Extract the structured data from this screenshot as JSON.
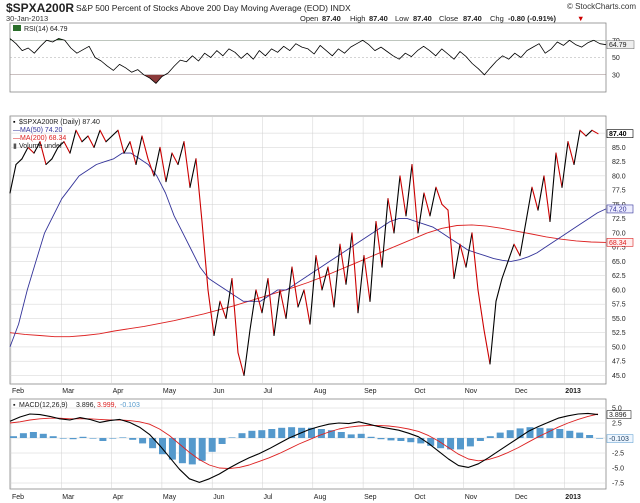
{
  "header": {
    "symbol": "$SPXA200R",
    "description": "S&P 500 Percent of Stocks Above 200 Day Moving Average (EOD) INDX",
    "date": "30-Jan-2013",
    "open_label": "Open",
    "open_value": "87.40",
    "high_label": "High",
    "high_value": "87.40",
    "low_label": "Low",
    "low_value": "87.40",
    "close_label": "Close",
    "close_value": "87.40",
    "chg_label": "Chg",
    "chg_value": "-0.80 (-0.91%)",
    "chg_marker": "▼",
    "brand": "© StockCharts.com"
  },
  "colors": {
    "price_up": "#000000",
    "price_down": "#cc0000",
    "ma50": "#333399",
    "ma200": "#dd2222",
    "macd_line": "#000000",
    "signal_line": "#dd2222",
    "histogram": "#5599cc",
    "rsi_line": "#000000",
    "rsi_overbought": "#2a6e2a",
    "rsi_oversold": "#8a3a3a",
    "grid": "#d0d0d0"
  },
  "chart_data": [
    {
      "type": "line",
      "panel": "rsi",
      "legend": "RSI(14) 64.79",
      "last_value_label": "64.79",
      "y_ticks": [
        "70",
        "50",
        "30"
      ],
      "ylim": [
        10,
        90
      ],
      "overbought": 70,
      "oversold": 30,
      "series": [
        {
          "name": "RSI(14)",
          "values": [
            72,
            66,
            58,
            61,
            55,
            63,
            70,
            68,
            72,
            70,
            61,
            55,
            59,
            63,
            50,
            46,
            40,
            35,
            42,
            38,
            33,
            36,
            30,
            26,
            20,
            28,
            32,
            40,
            47,
            45,
            52,
            46,
            55,
            50,
            58,
            52,
            60,
            56,
            49,
            55,
            48,
            58,
            52,
            60,
            56,
            63,
            58,
            66,
            62,
            60,
            54,
            64,
            58,
            52,
            60,
            55,
            62,
            66,
            70,
            65,
            58,
            62,
            57,
            52,
            48,
            55,
            51,
            58,
            63,
            58,
            52,
            60,
            54,
            48,
            57,
            51,
            43,
            37,
            30,
            38,
            46,
            52,
            48,
            55,
            50,
            58,
            62,
            66,
            55,
            60,
            68,
            64,
            70,
            65,
            62,
            67,
            70,
            66,
            64.79
          ]
        }
      ]
    },
    {
      "type": "line",
      "panel": "price",
      "legend": [
        "$SPXA200R (Daily) 87.40",
        "MA(50) 74.20",
        "MA(200) 68.34",
        "Volume undef"
      ],
      "last_value_labels": {
        "close": "87.40",
        "ma50": "74.20",
        "ma200": "68.34"
      },
      "x_tick_labels": [
        "Feb",
        "Mar",
        "Apr",
        "May",
        "Jun",
        "Jul",
        "Aug",
        "Sep",
        "Oct",
        "Nov",
        "Dec",
        "2013"
      ],
      "y_tick_labels": [
        "45.0",
        "47.5",
        "50.0",
        "52.5",
        "55.0",
        "57.5",
        "60.0",
        "62.5",
        "65.0",
        "67.5",
        "70.0",
        "72.5",
        "75.0",
        "77.5",
        "80.0",
        "82.5",
        "85.0",
        "87.5"
      ],
      "ylim": [
        43.5,
        90.5
      ],
      "series": [
        {
          "name": "$SPXA200R (Daily)",
          "values": [
            77,
            82,
            83,
            85,
            84,
            86,
            82,
            83,
            85,
            86,
            84,
            88,
            86,
            87,
            85,
            88,
            86,
            87,
            88,
            84,
            86,
            82,
            87,
            83,
            80,
            85,
            79,
            84,
            82,
            86,
            78,
            83,
            72,
            60,
            52,
            58,
            55,
            62,
            49,
            45,
            53,
            60,
            56,
            62,
            52,
            60,
            55,
            64,
            57,
            60,
            54,
            66,
            60,
            64,
            57,
            68,
            61,
            70,
            56,
            66,
            58,
            72,
            64,
            76,
            70,
            80,
            73,
            82,
            70,
            77,
            73,
            78,
            75,
            74,
            62,
            68,
            64,
            70,
            60,
            53,
            47,
            58,
            62,
            65,
            68,
            66,
            72,
            78,
            74,
            80,
            72,
            84,
            78,
            86,
            82,
            88,
            87,
            88,
            87.4
          ]
        },
        {
          "name": "MA(50)",
          "values": [
            50,
            54,
            60,
            65,
            70,
            73,
            76,
            78,
            80,
            81,
            82,
            82.5,
            83,
            84,
            84,
            83,
            82,
            80,
            77,
            73,
            70,
            67,
            64,
            62,
            61,
            60,
            59,
            58,
            58,
            58,
            59,
            60,
            60,
            61,
            62,
            63,
            64,
            65,
            66,
            67,
            68,
            69,
            70,
            71,
            72,
            72.5,
            72.5,
            72,
            71.5,
            71,
            70,
            69,
            68,
            67,
            66.5,
            66,
            65.5,
            65.2,
            65,
            65.3,
            65.8,
            66.5,
            67.5,
            68.5,
            69.5,
            70.5,
            71.5,
            72.5,
            73.5,
            74.2
          ]
        },
        {
          "name": "MA(200)",
          "values": [
            52.5,
            52.2,
            52,
            51.8,
            51.8,
            52,
            52.3,
            52.8,
            53.2,
            53.6,
            54.1,
            54.6,
            55.2,
            55.8,
            56.5,
            57.2,
            58,
            58.8,
            59.6,
            60.4,
            61.3,
            62.3,
            63.4,
            64.5,
            65.6,
            66.7,
            67.8,
            68.9,
            70,
            70.8,
            71.3,
            71.4,
            71.2,
            70.8,
            70.3,
            69.8,
            69.3,
            68.9,
            68.6,
            68.4,
            68.34
          ]
        }
      ]
    },
    {
      "type": "bar",
      "panel": "macd",
      "legend": [
        "MACD(12,26,9)",
        "3.896,",
        "3.999,",
        "-0.103"
      ],
      "last_value_labels": {
        "macd": "3.896",
        "hist": "-0.103"
      },
      "x_tick_labels": [
        "Feb",
        "Mar",
        "Apr",
        "May",
        "Jun",
        "Jul",
        "Aug",
        "Sep",
        "Oct",
        "Nov",
        "Dec",
        "2013"
      ],
      "y_tick_labels": [
        "5.0",
        "2.5",
        "0.0",
        "-2.5",
        "-5.0",
        "-7.5"
      ],
      "ylim": [
        -8.5,
        6.5
      ],
      "series": [
        {
          "name": "MACD",
          "values": [
            2.8,
            3.5,
            4.0,
            3.9,
            3.6,
            3.2,
            3.0,
            3.4,
            3.1,
            2.6,
            2.9,
            3.1,
            2.6,
            1.8,
            0.6,
            -1.2,
            -3.2,
            -5.2,
            -6.8,
            -7.4,
            -6.8,
            -6.0,
            -5.0,
            -4.1,
            -3.3,
            -2.6,
            -1.8,
            -0.9,
            0.0,
            0.7,
            1.4,
            1.9,
            2.3,
            2.5,
            2.4,
            2.7,
            2.3,
            1.9,
            1.6,
            1.3,
            0.8,
            0.2,
            -0.9,
            -2.2,
            -3.5,
            -4.6,
            -4.9,
            -4.3,
            -3.3,
            -2.2,
            -1.1,
            0.0,
            1.1,
            1.9,
            2.6,
            3.3,
            3.7,
            4.0,
            4.1,
            3.896
          ]
        },
        {
          "name": "Signal",
          "values": [
            2.5,
            2.7,
            3.0,
            3.2,
            3.3,
            3.3,
            3.2,
            3.2,
            3.2,
            3.1,
            3.0,
            3.0,
            2.9,
            2.7,
            2.3,
            1.5,
            0.4,
            -1.0,
            -2.4,
            -3.6,
            -4.5,
            -5.0,
            -5.1,
            -4.9,
            -4.5,
            -3.9,
            -3.3,
            -2.6,
            -1.8,
            -1.0,
            -0.3,
            0.4,
            1.0,
            1.5,
            1.8,
            2.0,
            2.1,
            2.1,
            2.0,
            1.8,
            1.5,
            1.1,
            0.4,
            -0.5,
            -1.6,
            -2.7,
            -3.5,
            -3.8,
            -3.6,
            -3.1,
            -2.4,
            -1.6,
            -0.7,
            0.2,
            1.0,
            1.8,
            2.5,
            3.1,
            3.6,
            3.999
          ]
        },
        {
          "name": "Histogram",
          "values": [
            0.3,
            0.8,
            1.0,
            0.7,
            0.3,
            -0.1,
            -0.2,
            0.2,
            -0.1,
            -0.5,
            -0.1,
            0.1,
            -0.3,
            -0.9,
            -1.7,
            -2.7,
            -3.6,
            -4.2,
            -4.4,
            -3.8,
            -2.3,
            -1.0,
            0.1,
            0.8,
            1.2,
            1.3,
            1.5,
            1.7,
            1.8,
            1.7,
            1.7,
            1.5,
            1.3,
            1.0,
            0.6,
            0.7,
            0.2,
            -0.2,
            -0.4,
            -0.5,
            -0.7,
            -0.9,
            -1.3,
            -1.7,
            -1.9,
            -1.9,
            -1.4,
            -0.5,
            0.3,
            0.9,
            1.3,
            1.6,
            1.8,
            1.7,
            1.6,
            1.5,
            1.2,
            0.9,
            0.5,
            -0.103
          ]
        }
      ]
    }
  ]
}
